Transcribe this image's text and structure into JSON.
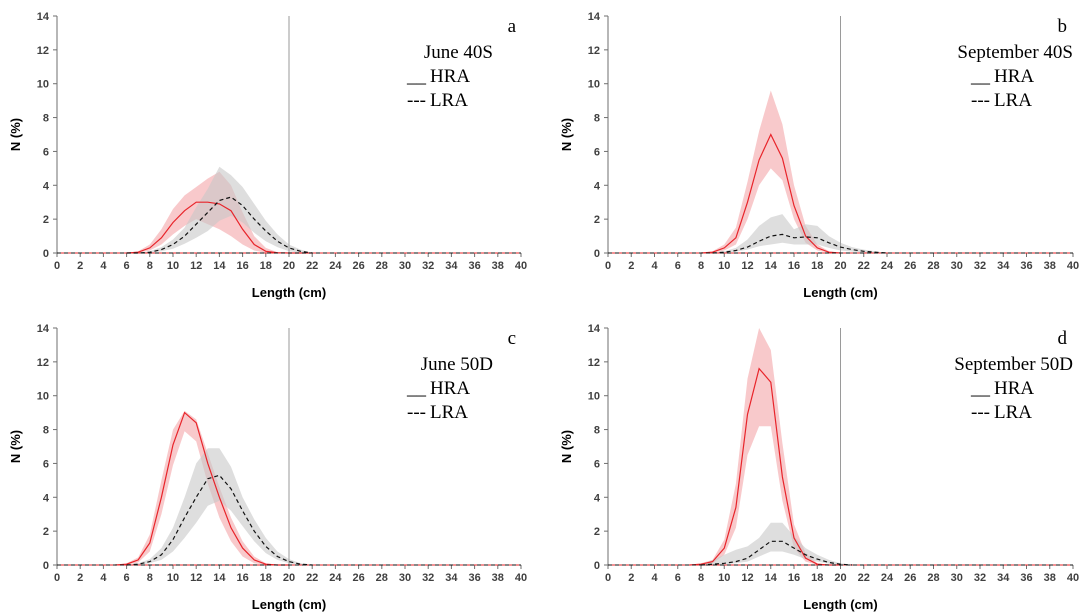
{
  "chart_data": [
    {
      "type": "line",
      "panel_label": "a",
      "title": "June 40S",
      "xlabel": "Length (cm)",
      "ylabel": "N (%)",
      "xlim": [
        0,
        40
      ],
      "ylim": [
        0,
        14
      ],
      "xticks": [
        0,
        2,
        4,
        6,
        8,
        10,
        12,
        14,
        16,
        18,
        20,
        22,
        24,
        26,
        28,
        30,
        32,
        34,
        36,
        38,
        40
      ],
      "yticks": [
        0,
        2,
        4,
        6,
        8,
        10,
        12,
        14
      ],
      "vline_x": 20,
      "legend": [
        {
          "marker": "__",
          "label": "HRA"
        },
        {
          "marker": "---",
          "label": "LRA"
        }
      ],
      "series": [
        {
          "name": "HRA",
          "style": "solid",
          "color": "#e8242a",
          "band_color": "#f4a5a8",
          "x": [
            6,
            7,
            8,
            9,
            10,
            11,
            12,
            13,
            14,
            15,
            16,
            17,
            18,
            19,
            20,
            21,
            22
          ],
          "values": [
            0,
            0.05,
            0.3,
            0.9,
            1.8,
            2.5,
            3.0,
            3.0,
            2.9,
            2.5,
            1.4,
            0.5,
            0.1,
            0.02,
            0,
            0,
            0
          ],
          "lower": [
            0,
            0.02,
            0.15,
            0.5,
            1.1,
            1.6,
            2.0,
            1.7,
            1.4,
            1.0,
            0.5,
            0.15,
            0.02,
            0,
            0,
            0,
            0
          ],
          "upper": [
            0,
            0.1,
            0.5,
            1.4,
            2.6,
            3.4,
            3.9,
            4.4,
            4.8,
            4.0,
            2.4,
            1.0,
            0.3,
            0.05,
            0,
            0,
            0
          ]
        },
        {
          "name": "LRA",
          "style": "dashed",
          "color": "#111111",
          "band_color": "#c8c8c8",
          "x": [
            6,
            7,
            8,
            9,
            10,
            11,
            12,
            13,
            14,
            15,
            16,
            17,
            18,
            19,
            20,
            21,
            22
          ],
          "values": [
            0,
            0,
            0.05,
            0.2,
            0.5,
            1.0,
            1.7,
            2.4,
            3.1,
            3.3,
            2.8,
            2.0,
            1.3,
            0.7,
            0.3,
            0.1,
            0
          ],
          "lower": [
            0,
            0,
            0.02,
            0.1,
            0.25,
            0.55,
            0.9,
            1.3,
            1.9,
            2.2,
            1.8,
            1.2,
            0.7,
            0.35,
            0.1,
            0.02,
            0
          ],
          "upper": [
            0,
            0,
            0.1,
            0.35,
            0.8,
            1.5,
            2.7,
            3.8,
            5.1,
            4.6,
            3.9,
            2.9,
            1.9,
            1.1,
            0.5,
            0.2,
            0
          ]
        }
      ]
    },
    {
      "type": "line",
      "panel_label": "b",
      "title": "September 40S",
      "xlabel": "Length (cm)",
      "ylabel": "N (%)",
      "xlim": [
        0,
        40
      ],
      "ylim": [
        0,
        14
      ],
      "xticks": [
        0,
        2,
        4,
        6,
        8,
        10,
        12,
        14,
        16,
        18,
        20,
        22,
        24,
        26,
        28,
        30,
        32,
        34,
        36,
        38,
        40
      ],
      "yticks": [
        0,
        2,
        4,
        6,
        8,
        10,
        12,
        14
      ],
      "vline_x": 20,
      "legend": [
        {
          "marker": "__",
          "label": "HRA"
        },
        {
          "marker": "---",
          "label": "LRA"
        }
      ],
      "series": [
        {
          "name": "HRA",
          "style": "solid",
          "color": "#e8242a",
          "band_color": "#f4a5a8",
          "x": [
            8,
            9,
            10,
            11,
            12,
            13,
            14,
            15,
            16,
            17,
            18,
            19,
            20
          ],
          "values": [
            0,
            0.05,
            0.3,
            0.9,
            3.0,
            5.5,
            7.0,
            5.6,
            2.8,
            1.0,
            0.3,
            0.05,
            0
          ],
          "lower": [
            0,
            0.02,
            0.15,
            0.5,
            2.0,
            4.0,
            5.0,
            4.3,
            2.0,
            0.6,
            0.15,
            0.02,
            0
          ],
          "upper": [
            0,
            0.1,
            0.5,
            1.5,
            4.2,
            7.2,
            9.6,
            7.6,
            4.0,
            1.6,
            0.5,
            0.1,
            0
          ]
        },
        {
          "name": "LRA",
          "style": "dashed",
          "color": "#111111",
          "band_color": "#c8c8c8",
          "x": [
            9,
            10,
            11,
            12,
            13,
            14,
            15,
            16,
            17,
            18,
            19,
            20,
            21,
            22,
            23,
            24
          ],
          "values": [
            0,
            0.05,
            0.15,
            0.35,
            0.7,
            1.0,
            1.1,
            0.9,
            0.95,
            0.9,
            0.6,
            0.35,
            0.2,
            0.1,
            0.05,
            0
          ],
          "lower": [
            0,
            0.02,
            0.08,
            0.2,
            0.4,
            0.5,
            0.6,
            0.5,
            0.5,
            0.5,
            0.3,
            0.15,
            0.08,
            0.03,
            0.01,
            0
          ],
          "upper": [
            0,
            0.1,
            0.3,
            0.8,
            1.6,
            2.1,
            2.3,
            1.4,
            1.7,
            1.6,
            1.0,
            0.6,
            0.35,
            0.2,
            0.1,
            0
          ]
        }
      ]
    },
    {
      "type": "line",
      "panel_label": "c",
      "title": "June 50D",
      "xlabel": "Length (cm)",
      "ylabel": "N (%)",
      "xlim": [
        0,
        40
      ],
      "ylim": [
        0,
        14
      ],
      "xticks": [
        0,
        2,
        4,
        6,
        8,
        10,
        12,
        14,
        16,
        18,
        20,
        22,
        24,
        26,
        28,
        30,
        32,
        34,
        36,
        38,
        40
      ],
      "yticks": [
        0,
        2,
        4,
        6,
        8,
        10,
        12,
        14
      ],
      "vline_x": 20,
      "legend": [
        {
          "marker": "__",
          "label": "HRA"
        },
        {
          "marker": "---",
          "label": "LRA"
        }
      ],
      "series": [
        {
          "name": "HRA",
          "style": "solid",
          "color": "#e8242a",
          "band_color": "#f4a5a8",
          "x": [
            5,
            6,
            7,
            8,
            9,
            10,
            11,
            12,
            13,
            14,
            15,
            16,
            17,
            18,
            19,
            20
          ],
          "values": [
            0,
            0.05,
            0.3,
            1.3,
            4.0,
            7.1,
            9.0,
            8.4,
            6.0,
            4.0,
            2.2,
            1.0,
            0.3,
            0.05,
            0,
            0
          ],
          "lower": [
            0,
            0.02,
            0.15,
            0.8,
            3.0,
            5.9,
            7.9,
            7.3,
            4.8,
            2.8,
            1.4,
            0.5,
            0.1,
            0.02,
            0,
            0
          ],
          "upper": [
            0,
            0.1,
            0.45,
            1.8,
            5.0,
            8.0,
            9.1,
            8.6,
            6.6,
            4.6,
            2.8,
            1.4,
            0.5,
            0.1,
            0,
            0
          ]
        },
        {
          "name": "LRA",
          "style": "dashed",
          "color": "#111111",
          "band_color": "#c8c8c8",
          "x": [
            6,
            7,
            8,
            9,
            10,
            11,
            12,
            13,
            14,
            15,
            16,
            17,
            18,
            19,
            20,
            21,
            22
          ],
          "values": [
            0,
            0.05,
            0.2,
            0.6,
            1.5,
            2.8,
            4.0,
            5.1,
            5.3,
            4.5,
            3.2,
            2.0,
            1.1,
            0.5,
            0.2,
            0.05,
            0
          ],
          "lower": [
            0,
            0.02,
            0.1,
            0.3,
            0.8,
            1.6,
            2.5,
            3.5,
            3.8,
            3.2,
            2.3,
            1.4,
            0.7,
            0.3,
            0.1,
            0.02,
            0
          ],
          "upper": [
            0,
            0.1,
            0.35,
            1.0,
            2.2,
            4.0,
            6.0,
            6.9,
            6.9,
            5.8,
            4.0,
            2.7,
            1.6,
            0.8,
            0.35,
            0.1,
            0
          ]
        }
      ]
    },
    {
      "type": "line",
      "panel_label": "d",
      "title": "September 50D",
      "xlabel": "Length (cm)",
      "ylabel": "N (%)",
      "xlim": [
        0,
        40
      ],
      "ylim": [
        0,
        14
      ],
      "xticks": [
        0,
        2,
        4,
        6,
        8,
        10,
        12,
        14,
        16,
        18,
        20,
        22,
        24,
        26,
        28,
        30,
        32,
        34,
        36,
        38,
        40
      ],
      "yticks": [
        0,
        2,
        4,
        6,
        8,
        10,
        12,
        14
      ],
      "vline_x": 20,
      "legend": [
        {
          "marker": "__",
          "label": "HRA"
        },
        {
          "marker": "---",
          "label": "LRA"
        }
      ],
      "series": [
        {
          "name": "HRA",
          "style": "solid",
          "color": "#e8242a",
          "band_color": "#f4a5a8",
          "x": [
            7,
            8,
            9,
            10,
            11,
            12,
            13,
            14,
            15,
            16,
            17,
            18,
            19,
            20
          ],
          "values": [
            0,
            0.05,
            0.2,
            1.0,
            3.4,
            8.9,
            11.6,
            10.8,
            5.2,
            1.6,
            0.4,
            0.05,
            0,
            0
          ],
          "lower": [
            0,
            0.02,
            0.1,
            0.6,
            2.2,
            6.5,
            8.2,
            8.2,
            3.8,
            1.0,
            0.2,
            0.02,
            0,
            0
          ],
          "upper": [
            0,
            0.1,
            0.3,
            1.5,
            4.8,
            11.0,
            14.0,
            12.7,
            7.2,
            2.4,
            0.7,
            0.1,
            0,
            0
          ]
        },
        {
          "name": "LRA",
          "style": "dashed",
          "color": "#111111",
          "band_color": "#c8c8c8",
          "x": [
            8,
            9,
            10,
            11,
            12,
            13,
            14,
            15,
            16,
            17,
            18,
            19,
            20,
            21
          ],
          "values": [
            0,
            0.05,
            0.1,
            0.2,
            0.4,
            0.9,
            1.4,
            1.4,
            1.0,
            0.6,
            0.35,
            0.15,
            0.05,
            0
          ],
          "lower": [
            0,
            0.02,
            0.05,
            0.1,
            0.2,
            0.5,
            0.8,
            0.8,
            0.6,
            0.35,
            0.2,
            0.08,
            0.02,
            0
          ],
          "upper": [
            0,
            0.3,
            0.6,
            0.9,
            1.1,
            1.6,
            2.5,
            2.5,
            1.7,
            1.0,
            0.6,
            0.3,
            0.1,
            0
          ]
        }
      ]
    }
  ]
}
